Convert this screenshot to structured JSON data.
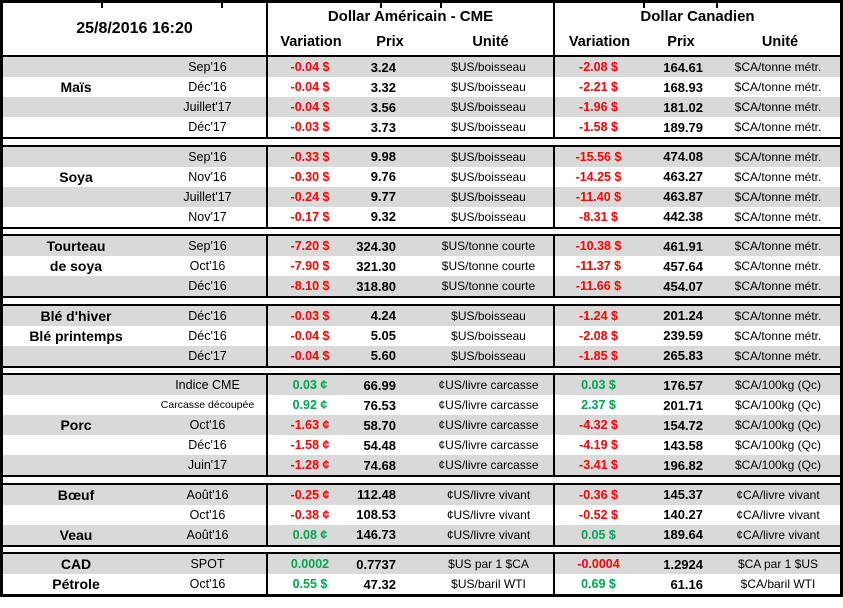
{
  "meta": {
    "timestamp": "25/8/2016 16:20"
  },
  "header": {
    "us_title": "Dollar Américain - CME",
    "ca_title": "Dollar Canadien",
    "col_variation": "Variation",
    "col_prix": "Prix",
    "col_unite": "Unité"
  },
  "colors": {
    "negative": "#ff0000",
    "positive": "#00a550",
    "stripe": "#d9d9d9",
    "border": "#000000"
  },
  "groups": [
    {
      "labels": [
        "",
        "Maïs",
        "",
        ""
      ],
      "rows": [
        {
          "month": "Sep'16",
          "us_var": "-0.04 $",
          "us_prix": "3.24",
          "us_unit": "$US/boisseau",
          "ca_var": "-2.08 $",
          "ca_prix": "164.61",
          "ca_unit": "$CA/tonne métr."
        },
        {
          "month": "Déc'16",
          "us_var": "-0.04 $",
          "us_prix": "3.32",
          "us_unit": "$US/boisseau",
          "ca_var": "-2.21 $",
          "ca_prix": "168.93",
          "ca_unit": "$CA/tonne métr."
        },
        {
          "month": "Juillet'17",
          "us_var": "-0.04 $",
          "us_prix": "3.56",
          "us_unit": "$US/boisseau",
          "ca_var": "-1.96 $",
          "ca_prix": "181.02",
          "ca_unit": "$CA/tonne métr."
        },
        {
          "month": "Déc'17",
          "us_var": "-0.03 $",
          "us_prix": "3.73",
          "us_unit": "$US/boisseau",
          "ca_var": "-1.58 $",
          "ca_prix": "189.79",
          "ca_unit": "$CA/tonne métr."
        }
      ]
    },
    {
      "labels": [
        "",
        "Soya",
        "",
        ""
      ],
      "rows": [
        {
          "month": "Sep'16",
          "us_var": "-0.33 $",
          "us_prix": "9.98",
          "us_unit": "$US/boisseau",
          "ca_var": "-15.56 $",
          "ca_prix": "474.08",
          "ca_unit": "$CA/tonne métr."
        },
        {
          "month": "Nov'16",
          "us_var": "-0.30 $",
          "us_prix": "9.76",
          "us_unit": "$US/boisseau",
          "ca_var": "-14.25 $",
          "ca_prix": "463.27",
          "ca_unit": "$CA/tonne métr."
        },
        {
          "month": "Juillet'17",
          "us_var": "-0.24 $",
          "us_prix": "9.77",
          "us_unit": "$US/boisseau",
          "ca_var": "-11.40 $",
          "ca_prix": "463.87",
          "ca_unit": "$CA/tonne métr."
        },
        {
          "month": "Nov'17",
          "us_var": "-0.17 $",
          "us_prix": "9.32",
          "us_unit": "$US/boisseau",
          "ca_var": "-8.31 $",
          "ca_prix": "442.38",
          "ca_unit": "$CA/tonne métr."
        }
      ]
    },
    {
      "labels": [
        "Tourteau",
        "de soya",
        ""
      ],
      "rows": [
        {
          "month": "Sep'16",
          "us_var": "-7.20 $",
          "us_prix": "324.30",
          "us_unit": "$US/tonne courte",
          "ca_var": "-10.38 $",
          "ca_prix": "461.91",
          "ca_unit": "$CA/tonne métr."
        },
        {
          "month": "Oct'16",
          "us_var": "-7.90 $",
          "us_prix": "321.30",
          "us_unit": "$US/tonne courte",
          "ca_var": "-11.37 $",
          "ca_prix": "457.64",
          "ca_unit": "$CA/tonne métr."
        },
        {
          "month": "Déc'16",
          "us_var": "-8.10 $",
          "us_prix": "318.80",
          "us_unit": "$US/tonne courte",
          "ca_var": "-11.66 $",
          "ca_prix": "454.07",
          "ca_unit": "$CA/tonne métr."
        }
      ]
    },
    {
      "labels": [
        "Blé d'hiver",
        "Blé printemps",
        ""
      ],
      "rows": [
        {
          "month": "Déc'16",
          "us_var": "-0.03 $",
          "us_prix": "4.24",
          "us_unit": "$US/boisseau",
          "ca_var": "-1.24 $",
          "ca_prix": "201.24",
          "ca_unit": "$CA/tonne métr."
        },
        {
          "month": "Déc'16",
          "us_var": "-0.04 $",
          "us_prix": "5.05",
          "us_unit": "$US/boisseau",
          "ca_var": "-2.08 $",
          "ca_prix": "239.59",
          "ca_unit": "$CA/tonne métr."
        },
        {
          "month": "Déc'17",
          "us_var": "-0.04 $",
          "us_prix": "5.60",
          "us_unit": "$US/boisseau",
          "ca_var": "-1.85 $",
          "ca_prix": "265.83",
          "ca_unit": "$CA/tonne métr."
        }
      ]
    },
    {
      "labels": [
        "",
        "",
        "Porc",
        "",
        ""
      ],
      "rows": [
        {
          "month": "Indice CME",
          "us_var": "0.03 ¢",
          "us_prix": "66.99",
          "us_unit": "¢US/livre carcasse",
          "ca_var": "0.03 $",
          "ca_prix": "176.57",
          "ca_unit": "$CA/100kg (Qc)"
        },
        {
          "month": "Carcasse découpée",
          "small": true,
          "us_var": "0.92 ¢",
          "us_prix": "76.53",
          "us_unit": "¢US/livre carcasse",
          "ca_var": "2.37 $",
          "ca_prix": "201.71",
          "ca_unit": "$CA/100kg (Qc)"
        },
        {
          "month": "Oct'16",
          "us_var": "-1.63 ¢",
          "us_prix": "58.70",
          "us_unit": "¢US/livre carcasse",
          "ca_var": "-4.32 $",
          "ca_prix": "154.72",
          "ca_unit": "$CA/100kg (Qc)"
        },
        {
          "month": "Déc'16",
          "us_var": "-1.58 ¢",
          "us_prix": "54.48",
          "us_unit": "¢US/livre carcasse",
          "ca_var": "-4.19 $",
          "ca_prix": "143.58",
          "ca_unit": "$CA/100kg (Qc)"
        },
        {
          "month": "Juin'17",
          "us_var": "-1.28 ¢",
          "us_prix": "74.68",
          "us_unit": "¢US/livre carcasse",
          "ca_var": "-3.41 $",
          "ca_prix": "196.82",
          "ca_unit": "$CA/100kg (Qc)"
        }
      ]
    },
    {
      "labels": [
        "Bœuf",
        "",
        "Veau"
      ],
      "rows": [
        {
          "month": "Août'16",
          "us_var": "-0.25 ¢",
          "us_prix": "112.48",
          "us_unit": "¢US/livre vivant",
          "ca_var": "-0.36 $",
          "ca_prix": "145.37",
          "ca_unit": "¢CA/livre vivant"
        },
        {
          "month": "Oct'16",
          "us_var": "-0.38 ¢",
          "us_prix": "108.53",
          "us_unit": "¢US/livre vivant",
          "ca_var": "-0.52 $",
          "ca_prix": "140.27",
          "ca_unit": "¢CA/livre vivant"
        },
        {
          "month": "Août'16",
          "us_var": "0.08 ¢",
          "us_prix": "146.73",
          "us_unit": "¢US/livre vivant",
          "ca_var": "0.05 $",
          "ca_prix": "189.64",
          "ca_unit": "¢CA/livre vivant"
        }
      ]
    },
    {
      "labels": [
        "CAD",
        "Pétrole"
      ],
      "rows": [
        {
          "month": "SPOT",
          "us_var": "0.0002",
          "us_prix": "0.7737",
          "us_unit": "$US par 1 $CA",
          "ca_var": "-0.0004",
          "ca_prix": "1.2924",
          "ca_unit": "$CA par 1 $US"
        },
        {
          "month": "Oct'16",
          "us_var": "0.55 $",
          "us_prix": "47.32",
          "us_unit": "$US/baril WTI",
          "ca_var": "0.69 $",
          "ca_prix": "61.16",
          "ca_unit": "$CA/baril WTI"
        }
      ]
    }
  ]
}
